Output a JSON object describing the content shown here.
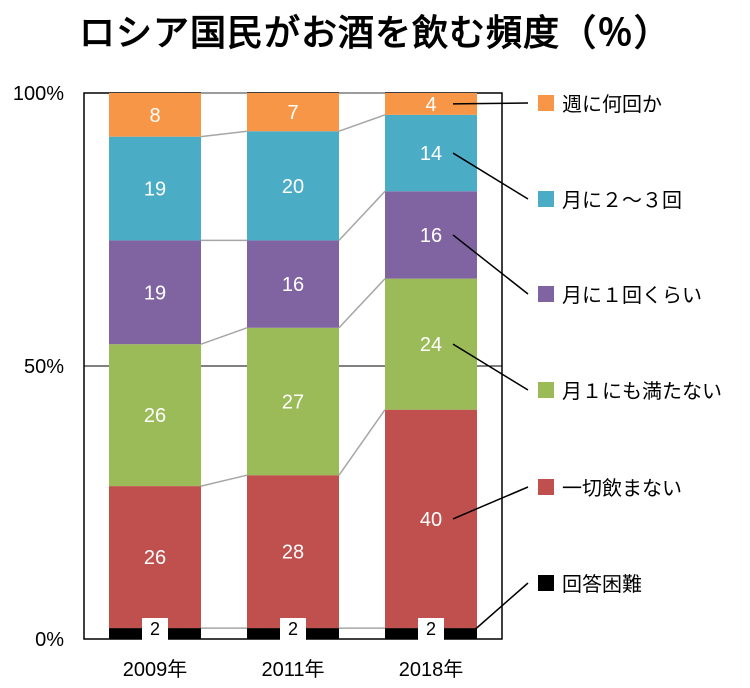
{
  "title": "ロシア国民がお酒を飲む頻度（％）",
  "chart_data": {
    "type": "bar",
    "stacked": true,
    "title": "ロシア国民がお酒を飲む頻度（％）",
    "categories": [
      "2009年",
      "2011年",
      "2018年"
    ],
    "ylim": [
      0,
      100
    ],
    "yticks": [
      "0%",
      "50%",
      "100%"
    ],
    "grid": true,
    "legend_position": "right",
    "series": [
      {
        "name": "回答困難",
        "values": [
          2,
          2,
          2
        ],
        "color": "#000000"
      },
      {
        "name": "一切飲まない",
        "values": [
          26,
          28,
          40
        ],
        "color": "#c0504d"
      },
      {
        "name": "月１にも満たない",
        "values": [
          26,
          27,
          24
        ],
        "color": "#9bbb59"
      },
      {
        "name": "月に１回くらい",
        "values": [
          19,
          16,
          16
        ],
        "color": "#8064a2"
      },
      {
        "name": "月に２～３回",
        "values": [
          19,
          20,
          14
        ],
        "color": "#4bacc6"
      },
      {
        "name": "週に何回か",
        "values": [
          8,
          7,
          4
        ],
        "color": "#f79646"
      }
    ]
  }
}
